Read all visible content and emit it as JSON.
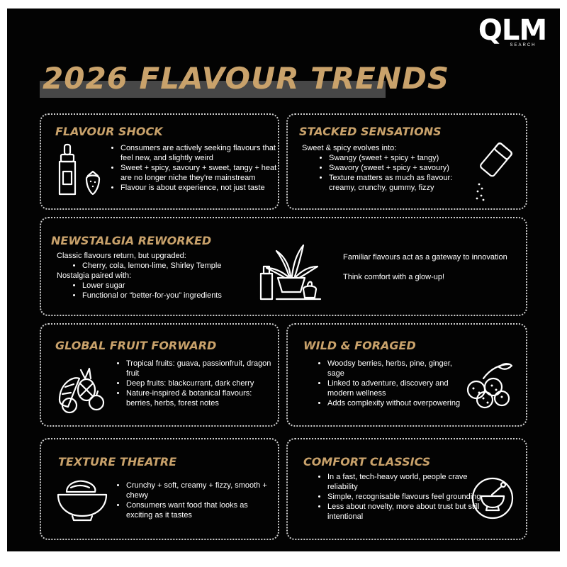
{
  "brand": {
    "logo": "QLM",
    "tagline": "SEARCH"
  },
  "title": "2026 FLAVOUR TRENDS",
  "cards": {
    "flavour_shock": {
      "title": "FLAVOUR SHOCK",
      "bullets": [
        "Consumers are actively seeking flavours that feel new, and slightly weird",
        "Sweet + spicy, savoury + sweet, tangy + heat are no longer niche they're mainstream",
        "Flavour is about experience, not just taste"
      ]
    },
    "stacked_sensations": {
      "title": "STACKED SENSATIONS",
      "intro": "Sweet & spicy evolves into:",
      "bullets": [
        "Swangy (sweet + spicy + tangy)",
        "Swavory (sweet + spicy + savoury)",
        "Texture matters as much as flavour: creamy, crunchy, gummy, fizzy"
      ]
    },
    "newstalgia": {
      "title": "NEWSTALGIA REWORKED",
      "intro1": "Classic flavours return, but upgraded:",
      "bullets1": [
        "Cherry, cola, lemon-lime, Shirley Temple"
      ],
      "intro2": "Nostalgia paired with:",
      "bullets2": [
        "Lower sugar",
        "Functional or “better-for-you” ingredients"
      ],
      "right1": "Familiar flavours act as a gateway to innovation",
      "right2": "Think comfort with a glow-up!"
    },
    "global_fruit": {
      "title": "GLOBAL FRUIT FORWARD",
      "bullets": [
        "Tropical fruits: guava, passionfruit, dragon fruit",
        "Deep fruits: blackcurrant, dark cherry",
        "Nature-inspired & botanical flavours: berries, herbs, forest notes"
      ]
    },
    "wild_foraged": {
      "title": "WILD & FORAGED",
      "bullets": [
        "Woodsy berries, herbs, pine, ginger, sage",
        "Linked to adventure, discovery and modern wellness",
        "Adds complexity without overpowering"
      ]
    },
    "texture_theatre": {
      "title": "TEXTURE THEATRE",
      "bullets": [
        "Crunchy + soft, creamy + fizzy, smooth + chewy",
        "Consumers want food that looks as exciting as it tastes"
      ]
    },
    "comfort_classics": {
      "title": "COMFORT CLASSICS",
      "bullets": [
        "In a fast, tech-heavy world, people crave reliability",
        "Simple, recognisable flavours feel grounding",
        "Less about novelty, more about trust but still intentional"
      ]
    }
  },
  "colors": {
    "background": "#030303",
    "accent": "#c9a26b",
    "text": "#ffffff",
    "title_band": "#474747"
  },
  "icons": {
    "flavour_shock": "dropper-bottle-strawberry-icon",
    "stacked_sensations": "salt-shaker-icon",
    "newstalgia": "plant-bottles-icon",
    "global_fruit": "fruit-basket-icon",
    "wild_foraged": "berries-icon",
    "texture_theatre": "bowl-icon",
    "comfort_classics": "mortar-pestle-icon"
  }
}
